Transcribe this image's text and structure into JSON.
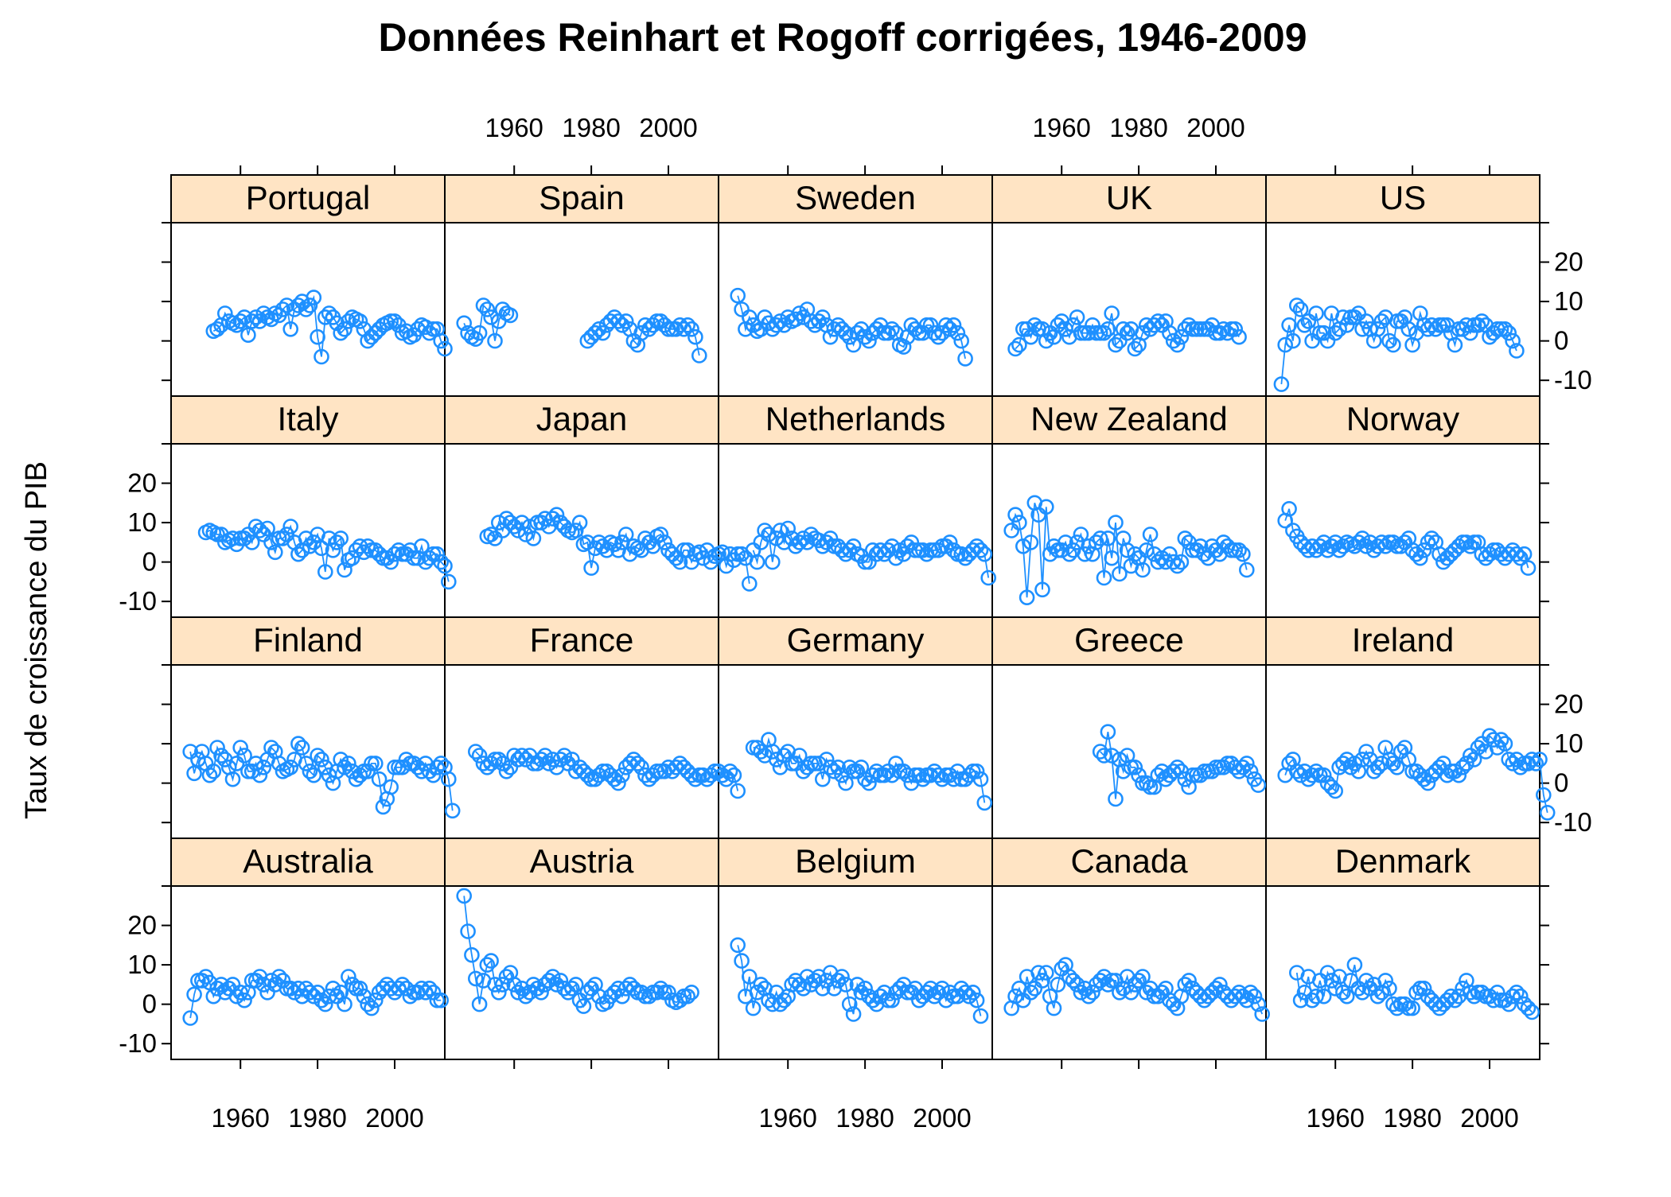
{
  "chart_data": {
    "type": "line",
    "title": "Données Reinhart et Rogoff corrigées, 1946-2009",
    "xlabel": "",
    "ylabel": "Taux de croissance du PIB",
    "xlim": [
      1942,
      2013
    ],
    "ylim": [
      -14,
      30
    ],
    "x_ticks": [
      "1960",
      "1980",
      "2000"
    ],
    "y_ticks": [
      "-10",
      "0",
      "10",
      "20"
    ],
    "grid": false,
    "legend": "none",
    "colors": {
      "series": "#1E90FF",
      "strip": "#FFE4C4"
    },
    "marker": "open-circle",
    "layout_rows_top_to_bottom": [
      [
        "Portugal",
        "Spain",
        "Sweden",
        "UK",
        "US"
      ],
      [
        "Italy",
        "Japan",
        "Netherlands",
        "New Zealand",
        "Norway"
      ],
      [
        "Finland",
        "France",
        "Germany",
        "Greece",
        "Ireland"
      ],
      [
        "Australia",
        "Austria",
        "Belgium",
        "Canada",
        "Denmark"
      ]
    ],
    "panels": [
      {
        "name": "Portugal",
        "start_year": 1953,
        "values": [
          2.5,
          3,
          4,
          7,
          5,
          4.5,
          4,
          5,
          6,
          1.5,
          5,
          6,
          5,
          7,
          6,
          5.5,
          7,
          6.5,
          8,
          9,
          3,
          8,
          9,
          10,
          8,
          9,
          11,
          1,
          -4,
          6,
          7,
          6,
          4.5,
          2,
          3,
          5,
          6,
          5.5,
          5,
          3,
          0,
          1,
          2,
          3,
          4,
          4.5,
          5,
          5,
          4,
          2,
          2.5,
          1,
          1.5,
          3,
          4,
          3.5,
          2,
          3,
          3,
          0,
          -2
        ]
      },
      {
        "name": "Spain",
        "start_year": 1947,
        "values": [
          4.5,
          2,
          1,
          0.5,
          2,
          9,
          8,
          6,
          0,
          5,
          8,
          7,
          6.5
        ]
      },
      {
        "name": "Spain",
        "start_year": 1979,
        "values": [
          0,
          1,
          2,
          3,
          2,
          4,
          5,
          6,
          5,
          4,
          5,
          3,
          0,
          -1,
          2,
          4,
          3,
          4,
          5,
          5,
          4,
          3,
          3,
          3,
          4,
          3,
          4,
          3,
          1,
          -3.7
        ]
      },
      {
        "name": "Sweden",
        "start_year": 1947,
        "values": [
          11.5,
          8,
          3,
          6,
          4,
          2.5,
          3,
          6,
          4.5,
          3,
          4,
          5,
          4,
          6,
          5,
          5.5,
          7,
          6,
          8,
          5,
          4,
          5,
          6,
          4,
          1,
          3,
          4,
          3,
          2,
          1,
          -1,
          2,
          3,
          1,
          0,
          2,
          3,
          4,
          2,
          2,
          3,
          2,
          -1,
          -1.5,
          1,
          4,
          3,
          2,
          2,
          4,
          4,
          2,
          1,
          2,
          4,
          3,
          4,
          2,
          0,
          -4.5
        ]
      },
      {
        "name": "UK",
        "start_year": 1948,
        "values": [
          -2,
          -1,
          3,
          3,
          1,
          4,
          3,
          3,
          0,
          2,
          1,
          4,
          5,
          3,
          1,
          4,
          6,
          2,
          2,
          2,
          4,
          2,
          2,
          2,
          3,
          7,
          -1,
          0,
          3,
          2,
          3,
          -2,
          -1,
          2,
          4,
          3,
          4,
          5,
          4,
          5,
          2,
          0,
          -1,
          1,
          3,
          4,
          3,
          3,
          3,
          3,
          3,
          4,
          2,
          2,
          3,
          2,
          3,
          3,
          1
        ]
      },
      {
        "name": "US",
        "start_year": 1946,
        "values": [
          -11,
          -1,
          4,
          0,
          9,
          8,
          4,
          5,
          0,
          7,
          2,
          2,
          0,
          7,
          2,
          3,
          6,
          4,
          6,
          6,
          7,
          3,
          5,
          3,
          0,
          3,
          5,
          6,
          0,
          -1,
          5,
          5,
          6,
          3,
          -1,
          2,
          7,
          4,
          3,
          4,
          3,
          4,
          4,
          4,
          2,
          -1,
          3,
          3,
          4,
          2,
          4,
          4,
          5,
          4,
          1,
          2,
          3,
          3,
          3,
          2,
          0,
          -2.5
        ]
      },
      {
        "name": "Italy",
        "start_year": 1951,
        "values": [
          7.5,
          8,
          7.5,
          7,
          7,
          5,
          5.5,
          6,
          4.5,
          6,
          6,
          7,
          5,
          9,
          8,
          7,
          8.5,
          5,
          2.5,
          6,
          6,
          7,
          9,
          5,
          2,
          3,
          6,
          4,
          5,
          7,
          3.5,
          -2.5,
          6,
          3,
          5,
          6,
          -2,
          0.5,
          1,
          3,
          4,
          2.5,
          4,
          3,
          3,
          2,
          1,
          1,
          0,
          2,
          3,
          2,
          2,
          3,
          1,
          1,
          4,
          0,
          1,
          2,
          2,
          0,
          -1,
          -5
        ]
      },
      {
        "name": "Japan",
        "start_year": 1953,
        "values": [
          6.5,
          7,
          6,
          10,
          8,
          11,
          10,
          9,
          8,
          10,
          7,
          9,
          6,
          10,
          10,
          11,
          9,
          11,
          12,
          10,
          9,
          8,
          7.5,
          8,
          10,
          4.5,
          5,
          -1.5,
          3.5,
          5,
          4,
          3,
          5,
          4.5,
          3,
          5,
          7,
          2,
          4,
          3.5,
          3,
          6,
          5,
          4,
          6.5,
          7,
          5,
          3,
          2,
          1,
          0,
          3,
          3,
          0,
          2,
          2.5,
          1,
          3,
          0,
          1.5,
          2,
          2.5,
          -1,
          2,
          0.5,
          2,
          2,
          1,
          -5.5
        ]
      },
      {
        "name": "Netherlands",
        "start_year": 1951,
        "values": [
          3,
          0,
          5,
          8,
          7,
          0,
          6,
          8,
          5,
          8.5,
          6,
          4,
          5,
          6,
          5,
          7,
          6,
          5.5,
          4,
          5,
          6,
          4,
          4,
          3,
          2,
          3,
          4,
          2,
          1.5,
          0,
          0,
          3,
          2,
          3,
          2,
          3,
          4,
          1,
          3,
          2,
          4,
          5,
          3,
          3,
          3,
          2,
          3,
          3,
          3,
          4,
          4,
          5,
          3,
          2,
          2,
          1,
          2,
          3,
          4,
          3,
          2,
          -4
        ]
      },
      {
        "name": "New Zealand",
        "start_year": 1947,
        "values": [
          8,
          12,
          10,
          4,
          -9,
          5,
          15,
          12,
          -7,
          14,
          2,
          4,
          3,
          3,
          5,
          2,
          3,
          5,
          7,
          2,
          4,
          2,
          5,
          6,
          -4,
          6,
          1,
          10,
          -3,
          6,
          3,
          -1,
          2,
          1,
          -2,
          3,
          7,
          2,
          0,
          1,
          0,
          2,
          0,
          -1,
          0,
          6,
          5,
          3,
          3,
          4,
          2,
          1,
          4,
          3,
          2,
          5,
          4,
          3,
          3,
          3,
          2,
          -2
        ]
      },
      {
        "name": "Norway",
        "start_year": 1947,
        "values": [
          10.5,
          13.5,
          8,
          6.5,
          5,
          4,
          3,
          4,
          3,
          4,
          5,
          3,
          4,
          5,
          3,
          4,
          5,
          4.5,
          4,
          5,
          6,
          4,
          5,
          3,
          4,
          5,
          4,
          5,
          5,
          4,
          4,
          5,
          6,
          3,
          2,
          1,
          3,
          5,
          6,
          5,
          2,
          0,
          1,
          2,
          3,
          4,
          5,
          5,
          4,
          5,
          5,
          2,
          1,
          2,
          3,
          3,
          2,
          1,
          2,
          3,
          2,
          1,
          2,
          -1.5
        ]
      },
      {
        "name": "Finland",
        "start_year": 1947,
        "values": [
          8,
          2.5,
          6,
          8,
          5,
          2,
          3,
          9,
          7,
          6,
          4,
          1,
          5,
          9,
          7,
          3,
          3,
          5,
          2,
          4,
          6,
          9,
          8,
          5,
          3,
          3.5,
          4,
          6,
          10,
          9,
          5,
          3,
          2,
          7,
          6,
          4,
          2,
          0,
          3,
          6,
          4,
          5,
          3,
          1,
          2,
          3,
          3,
          5,
          5,
          1,
          -6,
          -4,
          -1,
          4,
          4,
          4,
          6,
          5,
          5,
          4,
          3,
          5,
          3,
          2,
          4,
          5,
          4,
          1,
          -7
        ]
      },
      {
        "name": "France",
        "start_year": 1950,
        "values": [
          8,
          7,
          5,
          4,
          5,
          6,
          6,
          5,
          3,
          4,
          7,
          6,
          7,
          6,
          7,
          5,
          5,
          6,
          7,
          5,
          6,
          4,
          6,
          7,
          5,
          6,
          3,
          4,
          3,
          2,
          1,
          1,
          2,
          3,
          3,
          2,
          1,
          0,
          2,
          4,
          5,
          6,
          5,
          4,
          2,
          1,
          2,
          3,
          3,
          3,
          4,
          3,
          4,
          5,
          4,
          3,
          2,
          1,
          2,
          2,
          1,
          2,
          3,
          3,
          2,
          1,
          3,
          2,
          -2
        ]
      },
      {
        "name": "Germany",
        "start_year": 1951,
        "values": [
          9,
          9,
          8,
          7,
          11,
          8,
          6,
          4,
          7,
          8,
          5,
          5,
          7,
          3,
          4,
          5,
          5,
          5,
          1,
          6,
          4,
          3,
          4,
          2,
          0,
          4,
          3,
          3,
          4,
          1,
          0,
          2,
          3,
          2,
          2,
          3,
          2,
          5,
          3,
          3,
          2,
          0,
          2,
          2,
          1,
          2,
          2,
          3,
          2,
          1,
          2,
          2,
          1,
          3,
          1,
          1,
          2,
          3,
          3,
          1,
          -5
        ]
      },
      {
        "name": "Greece",
        "start_year": 1970,
        "values": [
          8,
          7,
          13,
          7,
          -4,
          6,
          3,
          7,
          4,
          4,
          2,
          0,
          0,
          -1,
          -1,
          2,
          3,
          1,
          2,
          3,
          4,
          3,
          1,
          -1,
          2,
          2,
          2,
          3,
          3,
          3,
          4,
          4,
          4,
          5,
          5,
          4,
          3,
          4,
          5,
          3,
          1,
          -0.5
        ]
      },
      {
        "name": "Ireland",
        "start_year": 1947,
        "values": [
          2,
          5,
          6,
          3,
          2,
          3,
          1,
          2,
          3,
          2,
          2,
          0,
          -1,
          -2,
          4,
          5,
          6,
          4,
          5,
          3,
          6,
          8,
          6,
          3,
          4,
          5,
          9,
          6,
          5,
          4,
          8,
          9,
          6,
          3,
          3,
          2,
          1,
          0,
          2,
          3,
          4,
          5,
          2,
          3,
          3,
          2,
          4,
          5,
          7,
          6,
          9,
          10,
          8,
          12,
          11,
          9,
          11,
          10,
          6,
          5,
          6,
          4,
          5,
          5,
          6,
          5,
          6,
          -3,
          -7.5
        ]
      },
      {
        "name": "Australia",
        "start_year": 1947,
        "values": [
          -3.5,
          2.5,
          6,
          6,
          7,
          5.5,
          2,
          4,
          5,
          3,
          4,
          5,
          2,
          3,
          1,
          3,
          6,
          6,
          7,
          5,
          3,
          6,
          5,
          7,
          6,
          4,
          4,
          3,
          4,
          2,
          4,
          3,
          2,
          3,
          1,
          0,
          2,
          4,
          2,
          3,
          0,
          7,
          5,
          4,
          4,
          2,
          0,
          -1,
          1,
          3,
          4,
          5,
          4,
          3,
          4,
          5,
          4,
          2,
          3,
          3,
          4,
          3,
          4,
          3,
          1,
          1
        ]
      },
      {
        "name": "Austria",
        "start_year": 1947,
        "values": [
          27.5,
          18.5,
          12.5,
          6.5,
          0,
          6,
          10,
          11,
          5,
          3,
          5,
          7,
          8,
          5,
          3,
          4,
          2,
          3,
          5,
          4,
          3,
          5,
          6,
          7,
          5,
          6,
          4,
          3,
          4,
          5,
          1,
          -0.5,
          3,
          4,
          5,
          2,
          0,
          0.5,
          2,
          3,
          4,
          2,
          4,
          5,
          4,
          3,
          3,
          2,
          2,
          3,
          3,
          4,
          3,
          3,
          1,
          0.5,
          1,
          2,
          2,
          3
        ]
      },
      {
        "name": "Belgium",
        "start_year": 1947,
        "values": [
          15,
          11,
          2,
          7,
          -1,
          3,
          5,
          4,
          1,
          0,
          3,
          0,
          1,
          2,
          5,
          6,
          5,
          4,
          7,
          5,
          6,
          7,
          4,
          6,
          8,
          4,
          6,
          7,
          5,
          0,
          -2.5,
          5,
          3,
          4,
          2,
          1,
          0,
          2,
          3,
          1,
          1,
          3,
          4,
          5,
          3,
          3,
          4,
          1,
          2,
          3,
          4,
          2,
          3,
          4,
          1,
          3,
          2,
          2,
          4,
          3,
          2,
          3,
          1,
          -3
        ]
      },
      {
        "name": "Canada",
        "start_year": 1947,
        "values": [
          -1,
          2,
          4,
          1,
          7,
          3,
          4,
          8,
          6,
          8,
          2,
          -1,
          5,
          9,
          10,
          7,
          6,
          5,
          3,
          4,
          2,
          3,
          5,
          6,
          7,
          5,
          6,
          6,
          3,
          4,
          7,
          3,
          5,
          6,
          7,
          3,
          4,
          2,
          2,
          3,
          4,
          1,
          0,
          -1,
          2,
          5,
          6,
          4,
          3,
          2,
          1,
          2,
          3,
          4,
          5,
          3,
          2,
          1,
          2,
          3,
          2,
          1,
          3,
          2,
          0,
          -2.5
        ]
      },
      {
        "name": "Denmark",
        "start_year": 1950,
        "values": [
          8,
          1,
          3,
          7,
          1,
          2,
          6,
          2,
          8,
          6,
          4,
          7,
          3,
          2,
          6,
          10,
          4,
          3,
          6,
          4,
          5,
          2,
          3,
          6,
          4,
          0,
          -1,
          0,
          0,
          -1,
          -1,
          3,
          4,
          4,
          2,
          1,
          0,
          -1,
          0,
          1,
          2,
          1,
          2,
          4,
          6,
          3,
          2,
          3,
          3,
          2,
          2,
          1,
          3,
          1,
          1,
          0,
          2,
          3,
          2,
          0,
          -1,
          -2
        ]
      }
    ]
  }
}
